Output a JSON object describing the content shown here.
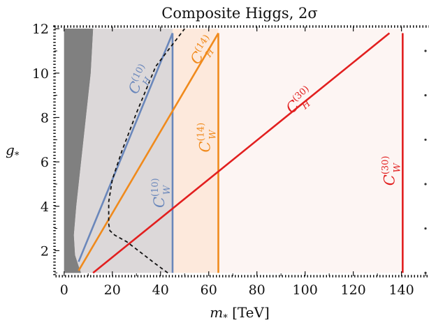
{
  "chart_data": {
    "type": "line",
    "title": "Composite Higgs, 2σ",
    "xlabel": "m",
    "xlabel_sub": "*",
    "xlabel_unit": " [TeV]",
    "ylabel": "g",
    "ylabel_sub": "*",
    "xlim": [
      -4,
      152
    ],
    "ylim": [
      0.85,
      12.1
    ],
    "xticks": [
      0,
      20,
      40,
      60,
      80,
      100,
      120,
      140
    ],
    "yticks": [
      2,
      4,
      6,
      8,
      10,
      12
    ],
    "colors": {
      "blue": "#6a87bb",
      "orange": "#f08a1c",
      "red": "#e21f1f",
      "dark_region": "#808080",
      "gray_region": "#dcd8d9",
      "orange_region": "#fde9dc",
      "pink_region": "#fdf5f3",
      "dashed": "#111111"
    },
    "regions": [
      {
        "name": "dark-excluded-region",
        "color": "#808080",
        "points": [
          [
            0,
            1
          ],
          [
            0,
            12
          ],
          [
            12,
            12
          ],
          [
            11,
            10
          ],
          [
            9,
            8
          ],
          [
            7,
            6
          ],
          [
            5,
            4
          ],
          [
            4,
            2.7
          ],
          [
            4.5,
            1.8
          ],
          [
            6,
            1.3
          ],
          [
            7,
            1
          ]
        ]
      },
      {
        "name": "blue-excluded-region",
        "color": "#dcd8d9",
        "points": [
          [
            0,
            1
          ],
          [
            0,
            12
          ],
          [
            45,
            12
          ],
          [
            45,
            1
          ]
        ]
      },
      {
        "name": "orange-excluded-region",
        "color": "#fde9dc",
        "points": [
          [
            45,
            1
          ],
          [
            45,
            12
          ],
          [
            64,
            12
          ],
          [
            64,
            1
          ]
        ]
      },
      {
        "name": "red-excluded-region",
        "color": "#fdf5f3",
        "points": [
          [
            64,
            1
          ],
          [
            64,
            12
          ],
          [
            140.5,
            12
          ],
          [
            140.5,
            1
          ]
        ]
      }
    ],
    "series": [
      {
        "label": "C_H",
        "sup": "(10)",
        "sub": "H",
        "color": "#6a87bb",
        "x": [
          6,
          45
        ],
        "y": [
          1.5,
          11.8
        ]
      },
      {
        "label": "C_W",
        "sup": "(10)",
        "sub": "W",
        "color": "#6a87bb",
        "x": [
          45,
          45
        ],
        "y": [
          1,
          11.8
        ]
      },
      {
        "label": "C_H",
        "sup": "(14)",
        "sub": "H",
        "color": "#f08a1c",
        "x": [
          6,
          64
        ],
        "y": [
          1.1,
          11.8
        ]
      },
      {
        "label": "C_W",
        "sup": "(14)",
        "sub": "W",
        "color": "#f08a1c",
        "x": [
          64,
          64
        ],
        "y": [
          1,
          11.8
        ]
      },
      {
        "label": "C_H",
        "sup": "(30)",
        "sub": "H",
        "color": "#e21f1f",
        "x": [
          12,
          135
        ],
        "y": [
          1,
          11.8
        ]
      },
      {
        "label": "C_W",
        "sup": "(30)",
        "sub": "W",
        "color": "#e21f1f",
        "x": [
          140.5,
          140.5
        ],
        "y": [
          1,
          11.8
        ]
      }
    ],
    "dashed_curve": {
      "x": [
        43,
        38,
        32,
        26,
        21,
        19,
        18.5,
        18.5,
        20,
        24,
        30,
        38,
        50
      ],
      "y": [
        1,
        1.4,
        1.9,
        2.4,
        2.7,
        2.9,
        3.2,
        4.2,
        5.2,
        6.5,
        8.2,
        10.3,
        12
      ]
    },
    "labels": [
      {
        "name": "label-ch10",
        "sup": "(10)",
        "sub": "H",
        "color": "#6a87bb",
        "x": 33,
        "y": 9.6,
        "rotate": -62
      },
      {
        "name": "label-cw10",
        "sup": "(10)",
        "sub": "W",
        "color": "#6a87bb",
        "x": 41.5,
        "y": 4.6,
        "rotate": -90
      },
      {
        "name": "label-ch14",
        "sup": "(14)",
        "sub": "H",
        "color": "#f08a1c",
        "x": 59,
        "y": 10.9,
        "rotate": -55
      },
      {
        "name": "label-cw14",
        "sup": "(14)",
        "sub": "W",
        "color": "#f08a1c",
        "x": 60.5,
        "y": 7.1,
        "rotate": -90
      },
      {
        "name": "label-ch30",
        "sup": "(30)",
        "sub": "H",
        "color": "#e21f1f",
        "x": 99,
        "y": 8.6,
        "rotate": -42
      },
      {
        "name": "label-cw30",
        "sup": "(30)",
        "sub": "W",
        "color": "#e21f1f",
        "x": 137,
        "y": 5.6,
        "rotate": -90
      }
    ]
  }
}
